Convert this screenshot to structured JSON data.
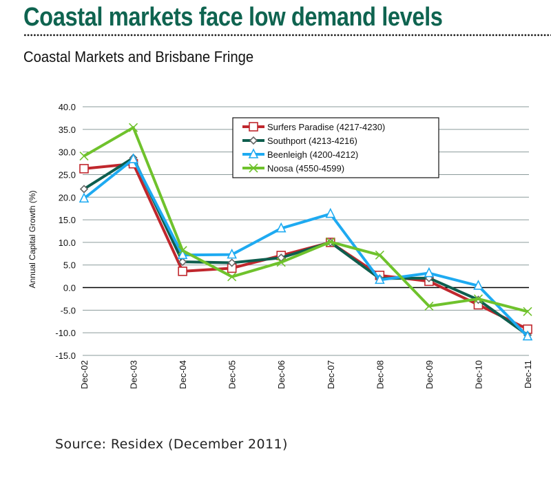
{
  "header": {
    "headline": "Coastal markets face low demand levels",
    "subtitle": "Coastal Markets and Brisbane Fringe"
  },
  "footer": {
    "source": "Source: Residex (December 2011)"
  },
  "colors": {
    "headline": "#0f6450",
    "gridline": "#8a9a9a",
    "zero_line": "#000000"
  },
  "chart_data": {
    "type": "line",
    "title": "Coastal Markets and Brisbane Fringe",
    "xlabel": "",
    "ylabel": "Annual Capital Growth (%)",
    "ylim": [
      -15,
      40
    ],
    "yticks": [
      40,
      35,
      30,
      25,
      20,
      15,
      10,
      5,
      0,
      -5,
      -10,
      -15
    ],
    "ytick_labels": [
      "40.0",
      "35.0",
      "30.0",
      "25.0",
      "20.0",
      "15.0",
      "10.0",
      "5.0",
      "0.0",
      "-5.0",
      "-10.0",
      "-15.0"
    ],
    "grid": true,
    "legend_position": "top-center",
    "categories": [
      "Dec-02",
      "Dec-03",
      "Dec-04",
      "Dec-05",
      "Dec-06",
      "Dec-07",
      "Dec-08",
      "Dec-09",
      "Dec-10",
      "Dec-11"
    ],
    "series": [
      {
        "name": "Surfers Paradise (4217-4230)",
        "color": "#c0272d",
        "marker": "square",
        "values": [
          26.3,
          27.4,
          3.6,
          4.3,
          7.1,
          10.0,
          2.7,
          1.4,
          -3.8,
          -9.2
        ]
      },
      {
        "name": "Southport (4213-4216)",
        "color": "#0e5e4e",
        "marker": "diamond",
        "values": [
          21.8,
          28.7,
          5.7,
          5.5,
          6.6,
          10.0,
          2.0,
          2.1,
          -2.7,
          -10.5
        ]
      },
      {
        "name": "Beenleigh (4200-4212)",
        "color": "#1eaaf1",
        "marker": "triangle",
        "values": [
          19.7,
          28.4,
          7.2,
          7.3,
          13.1,
          16.3,
          1.7,
          3.2,
          0.4,
          -10.8
        ]
      },
      {
        "name": "Noosa (4550-4599)",
        "color": "#6fc22c",
        "marker": "x",
        "values": [
          29.1,
          35.4,
          8.2,
          2.4,
          5.6,
          10.1,
          7.2,
          -4.1,
          -2.5,
          -5.3
        ]
      }
    ]
  }
}
